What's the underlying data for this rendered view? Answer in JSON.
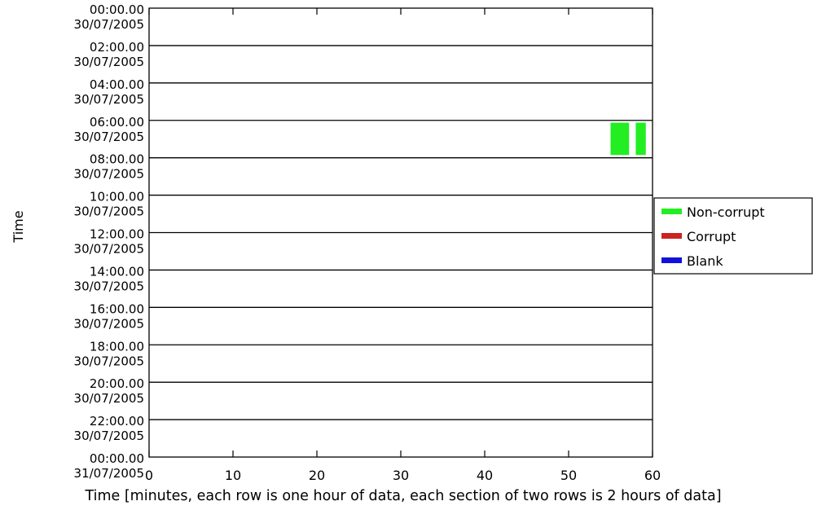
{
  "chart_data": {
    "type": "heatmap",
    "title": "",
    "xlabel": "Time [minutes, each row is one hour of data, each section of two rows is 2 hours of data]",
    "ylabel": "Time",
    "xlim": [
      0,
      60
    ],
    "x_ticks": [
      {
        "value": 0,
        "label": "0"
      },
      {
        "value": 10,
        "label": "10"
      },
      {
        "value": 20,
        "label": "20"
      },
      {
        "value": 30,
        "label": "30"
      },
      {
        "value": 40,
        "label": "40"
      },
      {
        "value": 50,
        "label": "50"
      },
      {
        "value": 60,
        "label": "60"
      }
    ],
    "y_ticks": [
      {
        "time": "00:00.00",
        "date": "30/07/2005"
      },
      {
        "time": "02:00.00",
        "date": "30/07/2005"
      },
      {
        "time": "04:00.00",
        "date": "30/07/2005"
      },
      {
        "time": "06:00.00",
        "date": "30/07/2005"
      },
      {
        "time": "08:00.00",
        "date": "30/07/2005"
      },
      {
        "time": "10:00.00",
        "date": "30/07/2005"
      },
      {
        "time": "12:00.00",
        "date": "30/07/2005"
      },
      {
        "time": "14:00.00",
        "date": "30/07/2005"
      },
      {
        "time": "16:00.00",
        "date": "30/07/2005"
      },
      {
        "time": "18:00.00",
        "date": "30/07/2005"
      },
      {
        "time": "20:00.00",
        "date": "30/07/2005"
      },
      {
        "time": "22:00.00",
        "date": "30/07/2005"
      },
      {
        "time": "00:00.00",
        "date": "31/07/2005"
      }
    ],
    "sections": 12,
    "legend": {
      "placement": "right",
      "entries": [
        {
          "label": "Non-corrupt",
          "color": "#22ee22"
        },
        {
          "label": "Corrupt",
          "color": "#cc2222"
        },
        {
          "label": "Blank",
          "color": "#1111dd"
        }
      ]
    },
    "segments": [
      {
        "section_start": "06:00.00 30/07/2005",
        "row": "first hour",
        "start_min": 55.0,
        "end_min": 57.2,
        "status": "Non-corrupt"
      },
      {
        "section_start": "06:00.00 30/07/2005",
        "row": "first hour",
        "start_min": 58.0,
        "end_min": 59.2,
        "status": "Non-corrupt"
      },
      {
        "section_start": "06:00.00 30/07/2005",
        "row": "second hour",
        "start_min": 55.0,
        "end_min": 57.2,
        "status": "Non-corrupt"
      },
      {
        "section_start": "06:00.00 30/07/2005",
        "row": "second hour",
        "start_min": 58.0,
        "end_min": 59.2,
        "status": "Non-corrupt"
      }
    ]
  }
}
